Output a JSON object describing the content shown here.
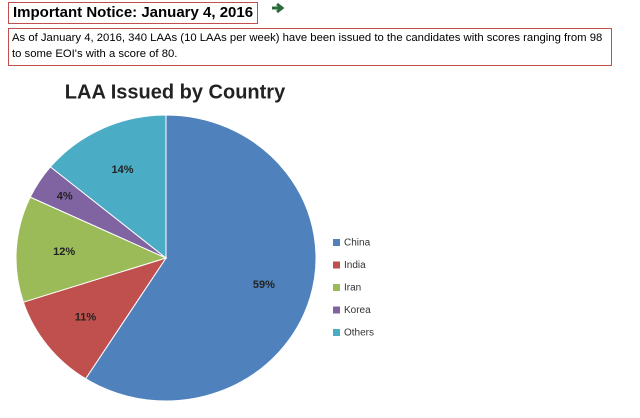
{
  "notice": {
    "title": "Important Notice: January 4, 2016",
    "body": "As of January 4, 2016, 340 LAAs (10 LAAs per week) have been issued to the candidates with scores ranging from 98 to some EOI's with a score of 80."
  },
  "chart_data": {
    "type": "pie",
    "title": "LAA Issued by Country",
    "categories": [
      "China",
      "India",
      "Iran",
      "Korea",
      "Others"
    ],
    "values": [
      59,
      11,
      12,
      4,
      14
    ],
    "value_labels": [
      "59%",
      "11%",
      "12%",
      "4%",
      "14%"
    ],
    "colors": [
      "#4f81bd",
      "#c0504d",
      "#9bbb59",
      "#8064a2",
      "#4bacc6"
    ],
    "legend": "right"
  }
}
